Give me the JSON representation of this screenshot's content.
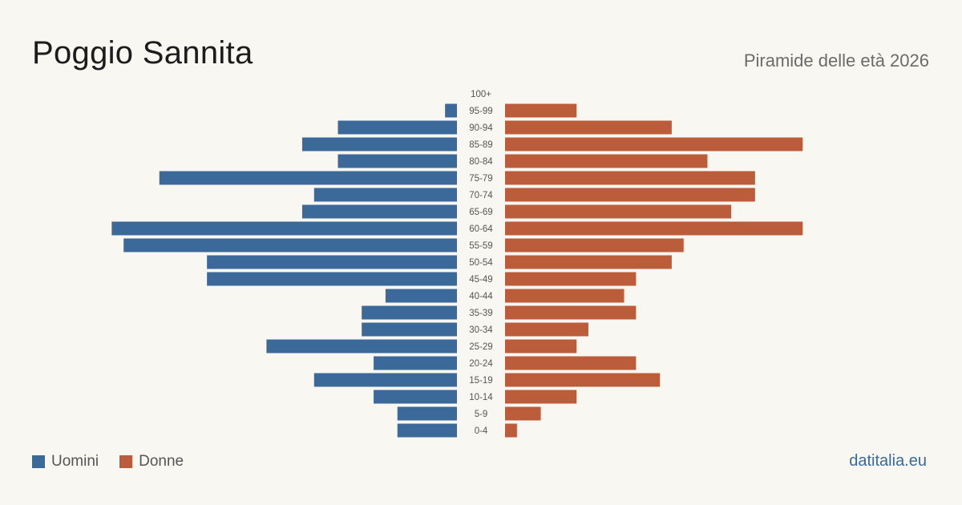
{
  "header": {
    "title": "Poggio Sannita",
    "subtitle": "Piramide delle età 2026"
  },
  "legend": {
    "men_label": "Uomini",
    "women_label": "Donne"
  },
  "footer": {
    "source": "datitalia.eu"
  },
  "colors": {
    "men": "#3b6a9a",
    "women": "#bb5d3b",
    "background": "#f9f7f2"
  },
  "chart_data": {
    "type": "bar",
    "orientation": "horizontal-pyramid",
    "categories": [
      "100+",
      "95-99",
      "90-94",
      "85-89",
      "80-84",
      "75-79",
      "70-74",
      "65-69",
      "60-64",
      "55-59",
      "50-54",
      "45-49",
      "40-44",
      "35-39",
      "30-34",
      "25-29",
      "20-24",
      "15-19",
      "10-14",
      "5-9",
      "0-4"
    ],
    "series": [
      {
        "name": "Uomini",
        "side": "left",
        "values": [
          0,
          1,
          10,
          13,
          10,
          25,
          12,
          13,
          29,
          28,
          21,
          21,
          6,
          8,
          8,
          16,
          7,
          12,
          7,
          5,
          5
        ]
      },
      {
        "name": "Donne",
        "side": "right",
        "values": [
          0,
          6,
          14,
          25,
          17,
          21,
          21,
          19,
          25,
          15,
          14,
          11,
          10,
          11,
          7,
          6,
          11,
          13,
          6,
          3,
          1
        ]
      }
    ],
    "xlabel": "",
    "ylabel": "",
    "grid": false,
    "legend_position": "bottom-left"
  }
}
